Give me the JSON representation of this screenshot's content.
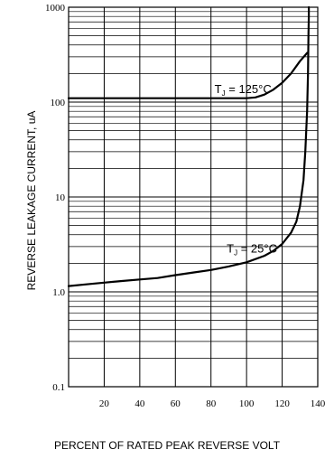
{
  "chart_data": {
    "type": "line",
    "xlabel": "PERCENT OF RATED PEAK REVERSE VOLT",
    "ylabel": "REVERSE LEAKAGE CURRENT, uA",
    "xlim": [
      0,
      140
    ],
    "ylim": [
      0.1,
      1000
    ],
    "yscale": "log",
    "grid": true,
    "x_ticks": [
      "20",
      "40",
      "60",
      "80",
      "100",
      "120",
      "140"
    ],
    "y_ticks": [
      "0.1",
      "1.0",
      "10",
      "100",
      "1000"
    ],
    "series": [
      {
        "name": "TJ = 125°C",
        "label_main": "T",
        "label_sub": "J",
        "label_rest": " = 125°C",
        "label_at": [
          98,
          125
        ],
        "x": [
          0,
          20,
          40,
          60,
          80,
          100,
          105,
          110,
          115,
          120,
          125,
          130,
          134
        ],
        "y": [
          110,
          110,
          110,
          110,
          110,
          110,
          112,
          120,
          135,
          160,
          200,
          270,
          330
        ]
      },
      {
        "name": "TJ = 25°C",
        "label_main": "T",
        "label_sub": "J",
        "label_rest": " = 25°C",
        "label_at": [
          103,
          2.6
        ],
        "x": [
          0,
          10,
          20,
          30,
          40,
          50,
          60,
          70,
          80,
          90,
          100,
          110,
          115,
          120,
          125,
          128,
          130,
          132,
          133,
          134,
          134.5,
          134.8,
          135,
          135,
          135
        ],
        "y": [
          1.15,
          1.2,
          1.25,
          1.3,
          1.35,
          1.4,
          1.5,
          1.6,
          1.7,
          1.85,
          2.05,
          2.4,
          2.7,
          3.2,
          4.2,
          5.5,
          8,
          15,
          30,
          80,
          200,
          500,
          800,
          1000,
          1000
        ]
      }
    ]
  }
}
